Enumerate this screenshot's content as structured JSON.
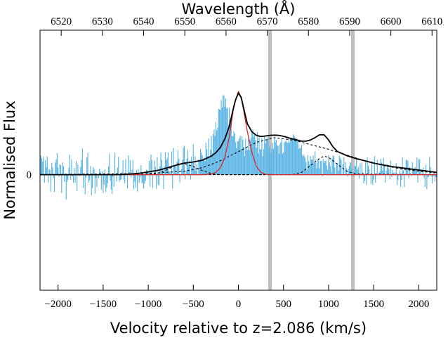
{
  "chart_data": {
    "type": "bar",
    "title": "",
    "xlabel": "Velocity relative to z=2.086 (km/s)",
    "ylabel": "Normalised Flux",
    "top_axis_label": "Wavelength (Å)",
    "xlim": [
      -2200,
      2200
    ],
    "ylim": [
      -1.0,
      1.25
    ],
    "x_ticks": [
      -2000,
      -1500,
      -1000,
      -500,
      0,
      500,
      1000,
      1500,
      2000
    ],
    "x_tick_labels": [
      "−2000",
      "−1500",
      "−1000",
      "−500",
      "0",
      "500",
      "1000",
      "1500",
      "2000"
    ],
    "top_ticks": [
      6520,
      6530,
      6540,
      6550,
      6560,
      6570,
      6580,
      6590,
      6600,
      6610
    ],
    "top_tick_labels": [
      "6520",
      "6530",
      "6540",
      "6550",
      "6560",
      "6570",
      "6580",
      "6590",
      "6600",
      "6610"
    ],
    "top_scale": {
      "reference_wavelength": 6563.0,
      "velocity_per_angstrom": 45.7
    },
    "y_ticks": [
      0
    ],
    "y_tick_labels": [
      "0"
    ],
    "masked_regions": [
      [
        330,
        370
      ],
      [
        1250,
        1290
      ]
    ],
    "colors": {
      "spectrum": "#5ab4e5",
      "total_fit": "#000000",
      "narrow_component": "#d62728",
      "components": "#000000",
      "mask": "#bfbfbf"
    },
    "spectrum": {
      "x_start": -2200,
      "x_step": 10,
      "values": [
        -0.014,
        0.164,
        0.141,
        0.112,
        0.155,
        -0.07,
        0.124,
        0.065,
        0.157,
        -0.07,
        0.049,
        0.043,
        -0.149,
        0.103,
        0.062,
        -0.029,
        -0.152,
        0.105,
        0.132,
        0.186,
        0.062,
        -0.017,
        0.09,
        0.083,
        -0.159,
        0.106,
        0.072,
        -0.059,
        0.014,
        -0.216,
        -0.063,
        -0.044,
        0.058,
        0.174,
        -0.046,
        0.133,
        -0.016,
        -0.07,
        0.058,
        -0.067,
        0.119,
        -0.142,
        0.087,
        0.001,
        -0.012,
        0.067,
        0.128,
        0.226,
        -0.113,
        0.017,
        -0.17,
        -0.024,
        0.15,
        0.188,
        -0.069,
        -0.05,
        0.073,
        -0.178,
        -0.115,
        0.063,
        0.047,
        -0.165,
        -0.029,
        -0.106,
        0.002,
        -0.03,
        0.052,
        0.024,
        -0.13,
        0.029,
        -0.157,
        -0.087,
        0.045,
        -0.149,
        -0.114,
        -0.075,
        0.071,
        0.182,
        -0.051,
        -0.131,
        -0.166,
        -0.017,
        -0.105,
        0.191,
        0.004,
        -0.059,
        0.061,
        0.153,
        -0.061,
        -0.045,
        -0.04,
        0.024,
        0.127,
        -0.042,
        -0.075,
        0.133,
        0.003,
        -0.12,
        0.168,
        0.022,
        0.126,
        -0.024,
        0.042,
        0.128,
        -0.127,
        -0.061,
        -0.115,
        0.042,
        -0.146,
        0.049,
        -0.071,
        -0.024,
        0.082,
        -0.077,
        -0.068,
        -0.121,
        -0.079,
        -0.052,
        0.043,
        0.038,
        0.031,
        0.119,
        -0.103,
        0.174,
        0.129,
        -0.114,
        0.007,
        0.124,
        0.066,
        -0.123,
        0.15,
        -0.086,
        -0.095,
        0.074,
        0.193,
        0.128,
        0.056,
        -0.124,
        0.072,
        0.192,
        0.126,
        0.141,
        0.193,
        0.024,
        0.027,
        0.009,
        0.201,
        -0.122,
        0.232,
        0.074,
        0.075,
        0.014,
        0.111,
        0.214,
        0.136,
        -0.067,
        0.003,
        0.048,
        0.13,
        0.235,
        0.251,
        -0.041,
        0.034,
        0.139,
        0.214,
        0.074,
        0.123,
        -0.043,
        0.155,
        0.102,
        0.262,
        0.054,
        0.16,
        0.036,
        0.093,
        -0.004,
        0.133,
        0.114,
        0.225,
        0.191,
        0.169,
        0.127,
        0.147,
        0.118,
        0.276,
        0.219,
        0.161,
        0.313,
        0.144,
        0.218,
        0.335,
        0.187,
        0.349,
        0.389,
        0.336,
        0.455,
        0.383,
        0.406,
        0.57,
        0.564,
        0.56,
        0.647,
        0.581,
        0.688,
        0.684,
        0.59,
        0.659,
        0.57,
        0.582,
        0.432,
        0.578,
        0.478,
        0.476,
        0.332,
        0.334,
        0.375,
        0.356,
        0.28,
        0.23,
        0.29,
        0.289,
        0.315,
        0.337,
        0.223,
        0.333,
        0.302,
        0.241,
        0.161,
        0.312,
        0.226,
        0.216,
        0.311,
        0.212,
        0.298,
        0.321,
        0.36,
        0.391,
        0.328,
        0.357,
        0.302,
        0.234,
        0.37,
        0.184,
        0.333,
        0.221,
        0.217,
        0.316,
        0.158,
        0.221,
        0.33,
        0.27,
        0.301,
        0.31,
        0.338,
        0.236,
        0.253,
        0.185,
        0.224,
        0.276,
        0.226,
        0.315,
        0.281,
        0.301,
        0.248,
        0.253,
        0.182,
        0.264,
        0.279,
        0.316,
        0.181,
        0.193,
        0.279,
        0.288,
        0.292,
        0.277,
        0.277,
        0.322,
        0.279,
        0.32,
        0.298,
        0.305,
        0.35,
        0.332,
        0.318,
        0.294,
        0.313,
        0.299,
        0.223,
        0.23,
        0.231,
        0.257,
        0.164,
        0.176,
        0.159,
        0.146,
        0.109,
        0.045,
        0.171,
        0.118,
        0.09,
        0.16,
        0.132,
        0.128,
        0.167,
        0.099,
        0.2,
        0.104,
        0.055,
        0.124,
        0.138,
        0.056,
        0.12,
        0.119,
        -0.014,
        0.136,
        0.099,
        0.119,
        0.12,
        0.079,
        0.042,
        0.168,
        0.106,
        0.073,
        0.021,
        0.14,
        0.167,
        0.158,
        0.062,
        -0.006,
        0.091,
        0.1,
        0.034,
        0.166,
        0.144,
        0.126,
        -0.006,
        0.094,
        0.149,
        0.004,
        0.108,
        0.056,
        -0.017,
        0.05,
        0.076,
        0.108,
        0.102,
        0.056,
        0.001,
        0.024,
        0.074,
        0.075,
        0.134,
        0.044,
        0.066,
        -0.034,
        0.098,
        0.009,
        0.105,
        0.023,
        -0.075,
        -0.055,
        0.109,
        -0.09,
        0.149,
        0.078,
        0.048,
        0.003,
        -0.081,
        0.119,
        -0.089,
        -0.043,
        0.16,
        -0.07,
        0.012,
        0.129,
        0.003,
        0.017,
        0.027,
        0.137,
        0.105,
        0.036,
        0.145,
        0.087,
        -0.068,
        0.031,
        0.09,
        0.06,
        0.052,
        -0.041,
        0.12,
        -0.021,
        0.042,
        0.013,
        0.02,
        0.009,
        0.1,
        -0.09,
        -0.047,
        0.009,
        0.037,
        -0.102,
        -0.045,
        0.151,
        0.037,
        -0.108,
        0.005,
        0.13,
        0.126,
        0.119,
        -0.029,
        0.066,
        0.016,
        -0.012,
        0.108,
        0.051,
        0.043,
        0.064,
        0.034,
        0.147,
        -0.069,
        0.136,
        0.133,
        0.037,
        -0.002,
        0.012,
        0.062,
        -0.029,
        -0.106,
        0.084,
        -0.125,
        -0.022,
        -0.02,
        0.155,
        0.065,
        -0.016,
        -0.076,
        -0.016,
        0.026,
        -0.06,
        -0.021,
        -0.023,
        0.044,
        0.162,
        0.004,
        0.066,
        -0.032,
        0.045,
        0.126,
        -0.017,
        -0.024,
        -0.017,
        0.093,
        0.064,
        0.037
      ]
    },
    "series": [
      {
        "kind": "total",
        "x": [
          -2200,
          -2100,
          -2000,
          -1900,
          -1800,
          -1700,
          -1600,
          -1500,
          -1400,
          -1300,
          -1200,
          -1100,
          -1000,
          -900,
          -800,
          -700,
          -600,
          -500,
          -400,
          -300,
          -250,
          -200,
          -150,
          -100,
          -60,
          -30,
          0,
          30,
          60,
          100,
          150,
          200,
          250,
          300,
          350,
          400,
          450,
          500,
          550,
          600,
          650,
          700,
          750,
          800,
          850,
          900,
          950,
          1000,
          1050,
          1100,
          1200,
          1300,
          1400,
          1500,
          1600,
          1700,
          1800,
          1900,
          2000,
          2100,
          2200
        ],
        "y": [
          0.0,
          0.0,
          0.0,
          0.0,
          0.0,
          0.0,
          0.0,
          0.0,
          0.0,
          0.001,
          0.005,
          0.012,
          0.024,
          0.036,
          0.057,
          0.08,
          0.1,
          0.11,
          0.125,
          0.16,
          0.19,
          0.235,
          0.31,
          0.42,
          0.56,
          0.65,
          0.705,
          0.67,
          0.57,
          0.44,
          0.37,
          0.34,
          0.33,
          0.335,
          0.34,
          0.342,
          0.34,
          0.332,
          0.32,
          0.31,
          0.3,
          0.29,
          0.29,
          0.3,
          0.32,
          0.345,
          0.345,
          0.3,
          0.24,
          0.2,
          0.165,
          0.14,
          0.12,
          0.1,
          0.085,
          0.07,
          0.06,
          0.05,
          0.04,
          0.03,
          0.02
        ]
      },
      {
        "kind": "narrow-component",
        "x": [
          -2200,
          -500,
          -400,
          -300,
          -250,
          -200,
          -150,
          -100,
          -50,
          0,
          30,
          60,
          100,
          150,
          200,
          250,
          300,
          400,
          500,
          2200
        ],
        "y": [
          0,
          0,
          0,
          0.005,
          0.02,
          0.06,
          0.15,
          0.33,
          0.6,
          0.72,
          0.67,
          0.55,
          0.37,
          0.19,
          0.07,
          0.02,
          0.003,
          0,
          0,
          0
        ]
      },
      {
        "kind": "broad-component",
        "x": [
          -2200,
          -1000,
          -800,
          -600,
          -400,
          -200,
          0,
          200,
          400,
          600,
          800,
          1000,
          1200,
          1400,
          1600,
          1800,
          2000,
          2200
        ],
        "y": [
          0,
          0.01,
          0.02,
          0.03,
          0.06,
          0.12,
          0.2,
          0.28,
          0.32,
          0.3,
          0.26,
          0.22,
          0.17,
          0.12,
          0.08,
          0.05,
          0.03,
          0.015
        ]
      },
      {
        "kind": "wing-component",
        "x": [
          -2200,
          -1000,
          -900,
          -800,
          -700,
          -650,
          -600,
          -500,
          -400,
          -300,
          -200,
          2200
        ],
        "y": [
          0,
          0,
          0.01,
          0.04,
          0.08,
          0.1,
          0.095,
          0.07,
          0.035,
          0.01,
          0,
          0
        ]
      },
      {
        "kind": "shoulder-component",
        "x": [
          -2200,
          600,
          700,
          800,
          900,
          950,
          1000,
          1100,
          1200,
          1300,
          2200
        ],
        "y": [
          0,
          0,
          0.02,
          0.08,
          0.14,
          0.16,
          0.15,
          0.09,
          0.03,
          0.005,
          0
        ]
      }
    ]
  }
}
